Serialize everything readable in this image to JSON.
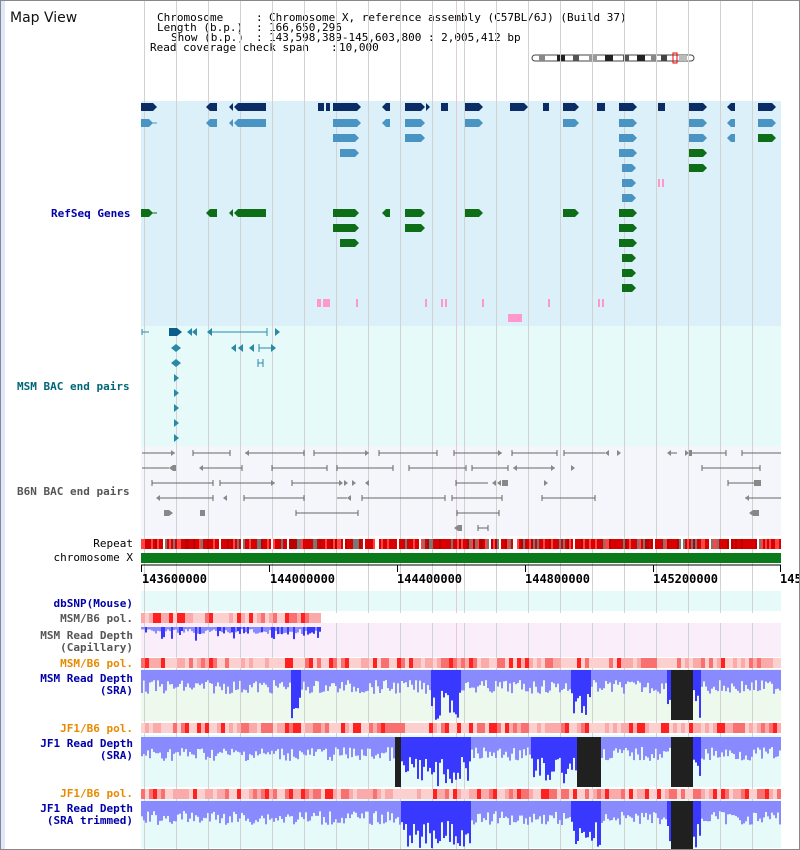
{
  "page_title": "Map View",
  "header": {
    "chromosome_label": "Chromosome",
    "chromosome_value": "Chromosome X, reference assembly (C57BL/6J) (Build 37)",
    "length_label": "Length (b.p.)",
    "length_value": "166,650,296",
    "show_label": "Show (b.p.)",
    "show_value": "143,598,389-145,603,800 : 2,005,412 bp",
    "coverage_label": "Read coverage check span",
    "coverage_value": "10,000"
  },
  "tracks": {
    "refseq": "RefSeq Genes",
    "msm_bac": "MSM BAC end pairs",
    "b6n_bac": "B6N BAC end pairs",
    "repeat": "Repeat",
    "chromosome": "chromosome X"
  },
  "axis": {
    "ticks": [
      "143600000",
      "144000000",
      "144400000",
      "144800000",
      "145200000",
      "145"
    ]
  },
  "lower_tracks": {
    "dbsnp": "dbSNP(Mouse)",
    "msm_b6_pol_1": "MSM/B6 pol.",
    "msm_read_depth_cap": "MSM Read Depth",
    "msm_read_depth_cap_sub": "(Capillary)",
    "msm_b6_pol_2": "MSM/B6 pol.",
    "msm_read_depth_sra": "MSM Read Depth",
    "msm_read_depth_sra_sub": "(SRA)",
    "jf1_b6_pol_1": "JF1/B6 pol.",
    "jf1_read_depth_sra": "JF1 Read Depth",
    "jf1_read_depth_sra_sub": "(SRA)",
    "jf1_b6_pol_2": "JF1/B6 pol.",
    "jf1_read_depth_trim": "JF1 Read Depth",
    "jf1_read_depth_trim_sub": "(SRA trimmed)"
  },
  "colors": {
    "refseq_bg": "#dcf0fa",
    "msm_bg": "#e6fafa",
    "b6n_bg": "#f4f6fb",
    "gene_navy": "#0c2c66",
    "gene_steel": "#4a94c4",
    "gene_green": "#0e6e18",
    "gene_pink": "#ff99cc",
    "link_blue": "#0000aa",
    "teal": "#006677",
    "orange": "#e88a00",
    "gray": "#555555",
    "depth_blue": "#3838ff",
    "depth_light": "#8a8aff"
  }
}
